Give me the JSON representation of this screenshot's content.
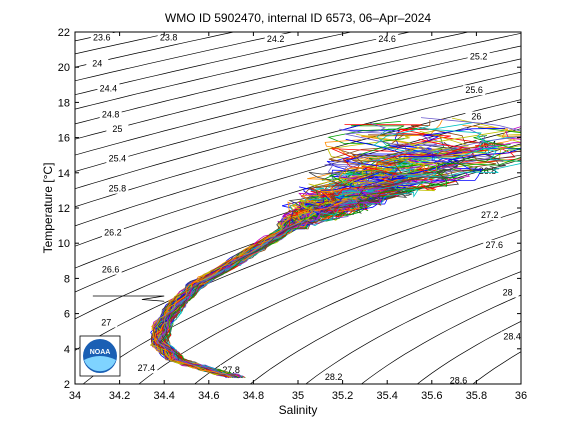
{
  "chart_data": {
    "type": "line",
    "title": "WMO ID 5902470, internal ID 6573, 06–Apr–2024",
    "xlabel": "Salinity",
    "ylabel": "Temperature [°C]",
    "xlim": [
      34,
      36
    ],
    "ylim": [
      2,
      22
    ],
    "xticks": [
      "34",
      "34.2",
      "34.4",
      "34.6",
      "34.8",
      "35",
      "35.2",
      "35.4",
      "35.6",
      "35.8",
      "36"
    ],
    "yticks": [
      "2",
      "4",
      "6",
      "8",
      "10",
      "12",
      "14",
      "16",
      "18",
      "20",
      "22"
    ],
    "grid": false,
    "legend": "none",
    "density_isopycnals": [
      {
        "sigma": 23.6,
        "label": "23.6",
        "lx": 34.12,
        "ly": 21.7
      },
      {
        "sigma": 23.8,
        "label": "23.8",
        "lx": 34.42,
        "ly": 21.7
      },
      {
        "sigma": 24.0,
        "label": "24",
        "lx": 34.1,
        "ly": 20.2
      },
      {
        "sigma": 24.2,
        "label": "24.2",
        "lx": 34.9,
        "ly": 21.6
      },
      {
        "sigma": 24.4,
        "label": "24.4",
        "lx": 34.15,
        "ly": 18.8
      },
      {
        "sigma": 24.6,
        "label": "24.6",
        "lx": 35.4,
        "ly": 21.6
      },
      {
        "sigma": 24.8,
        "label": "24.8",
        "lx": 34.16,
        "ly": 17.3
      },
      {
        "sigma": 25.0,
        "label": "25",
        "lx": 34.19,
        "ly": 16.5
      },
      {
        "sigma": 25.2,
        "label": "25.2",
        "lx": 35.81,
        "ly": 20.6
      },
      {
        "sigma": 25.4,
        "label": "25.4",
        "lx": 34.19,
        "ly": 14.8
      },
      {
        "sigma": 25.6,
        "label": "25.6",
        "lx": 35.79,
        "ly": 18.7
      },
      {
        "sigma": 25.8,
        "label": "25.8",
        "lx": 34.19,
        "ly": 13.1
      },
      {
        "sigma": 26.0,
        "label": "26",
        "lx": 35.8,
        "ly": 17.2
      },
      {
        "sigma": 26.2,
        "label": "26.2",
        "lx": 34.17,
        "ly": 10.6
      },
      {
        "sigma": 26.4,
        "label": "26.4",
        "lx": 35.85,
        "ly": 15.6
      },
      {
        "sigma": 26.6,
        "label": "26.6",
        "lx": 34.16,
        "ly": 8.5
      },
      {
        "sigma": 26.8,
        "label": "26.8",
        "lx": 35.85,
        "ly": 14.1
      },
      {
        "sigma": 27.0,
        "label": "27",
        "lx": 34.14,
        "ly": 5.5
      },
      {
        "sigma": 27.2,
        "label": "27.2",
        "lx": 35.86,
        "ly": 11.6
      },
      {
        "sigma": 27.4,
        "label": "27.4",
        "lx": 34.32,
        "ly": 2.9
      },
      {
        "sigma": 27.6,
        "label": "27.6",
        "lx": 35.88,
        "ly": 9.9
      },
      {
        "sigma": 27.8,
        "label": "27.8",
        "lx": 34.7,
        "ly": 2.8
      },
      {
        "sigma": 28.0,
        "label": "28",
        "lx": 35.94,
        "ly": 7.2
      },
      {
        "sigma": 28.2,
        "label": "28.2",
        "lx": 35.16,
        "ly": 2.4
      },
      {
        "sigma": 28.4,
        "label": "28.4",
        "lx": 35.96,
        "ly": 4.7
      },
      {
        "sigma": 28.6,
        "label": "28.6",
        "lx": 35.72,
        "ly": 2.2
      }
    ],
    "profile_envelope": [
      [
        34.72,
        2.4
      ],
      [
        34.6,
        2.8
      ],
      [
        34.45,
        3.4
      ],
      [
        34.38,
        4.3
      ],
      [
        34.39,
        5.3
      ],
      [
        34.46,
        6.6
      ],
      [
        34.55,
        7.7
      ],
      [
        34.7,
        8.8
      ],
      [
        34.85,
        10.0
      ],
      [
        35.0,
        11.2
      ],
      [
        35.15,
        12.1
      ],
      [
        35.3,
        13.0
      ],
      [
        35.5,
        14.2
      ],
      [
        35.65,
        15.5
      ],
      [
        35.75,
        17.2
      ]
    ],
    "profile_count": 120,
    "logo": "NOAA"
  }
}
